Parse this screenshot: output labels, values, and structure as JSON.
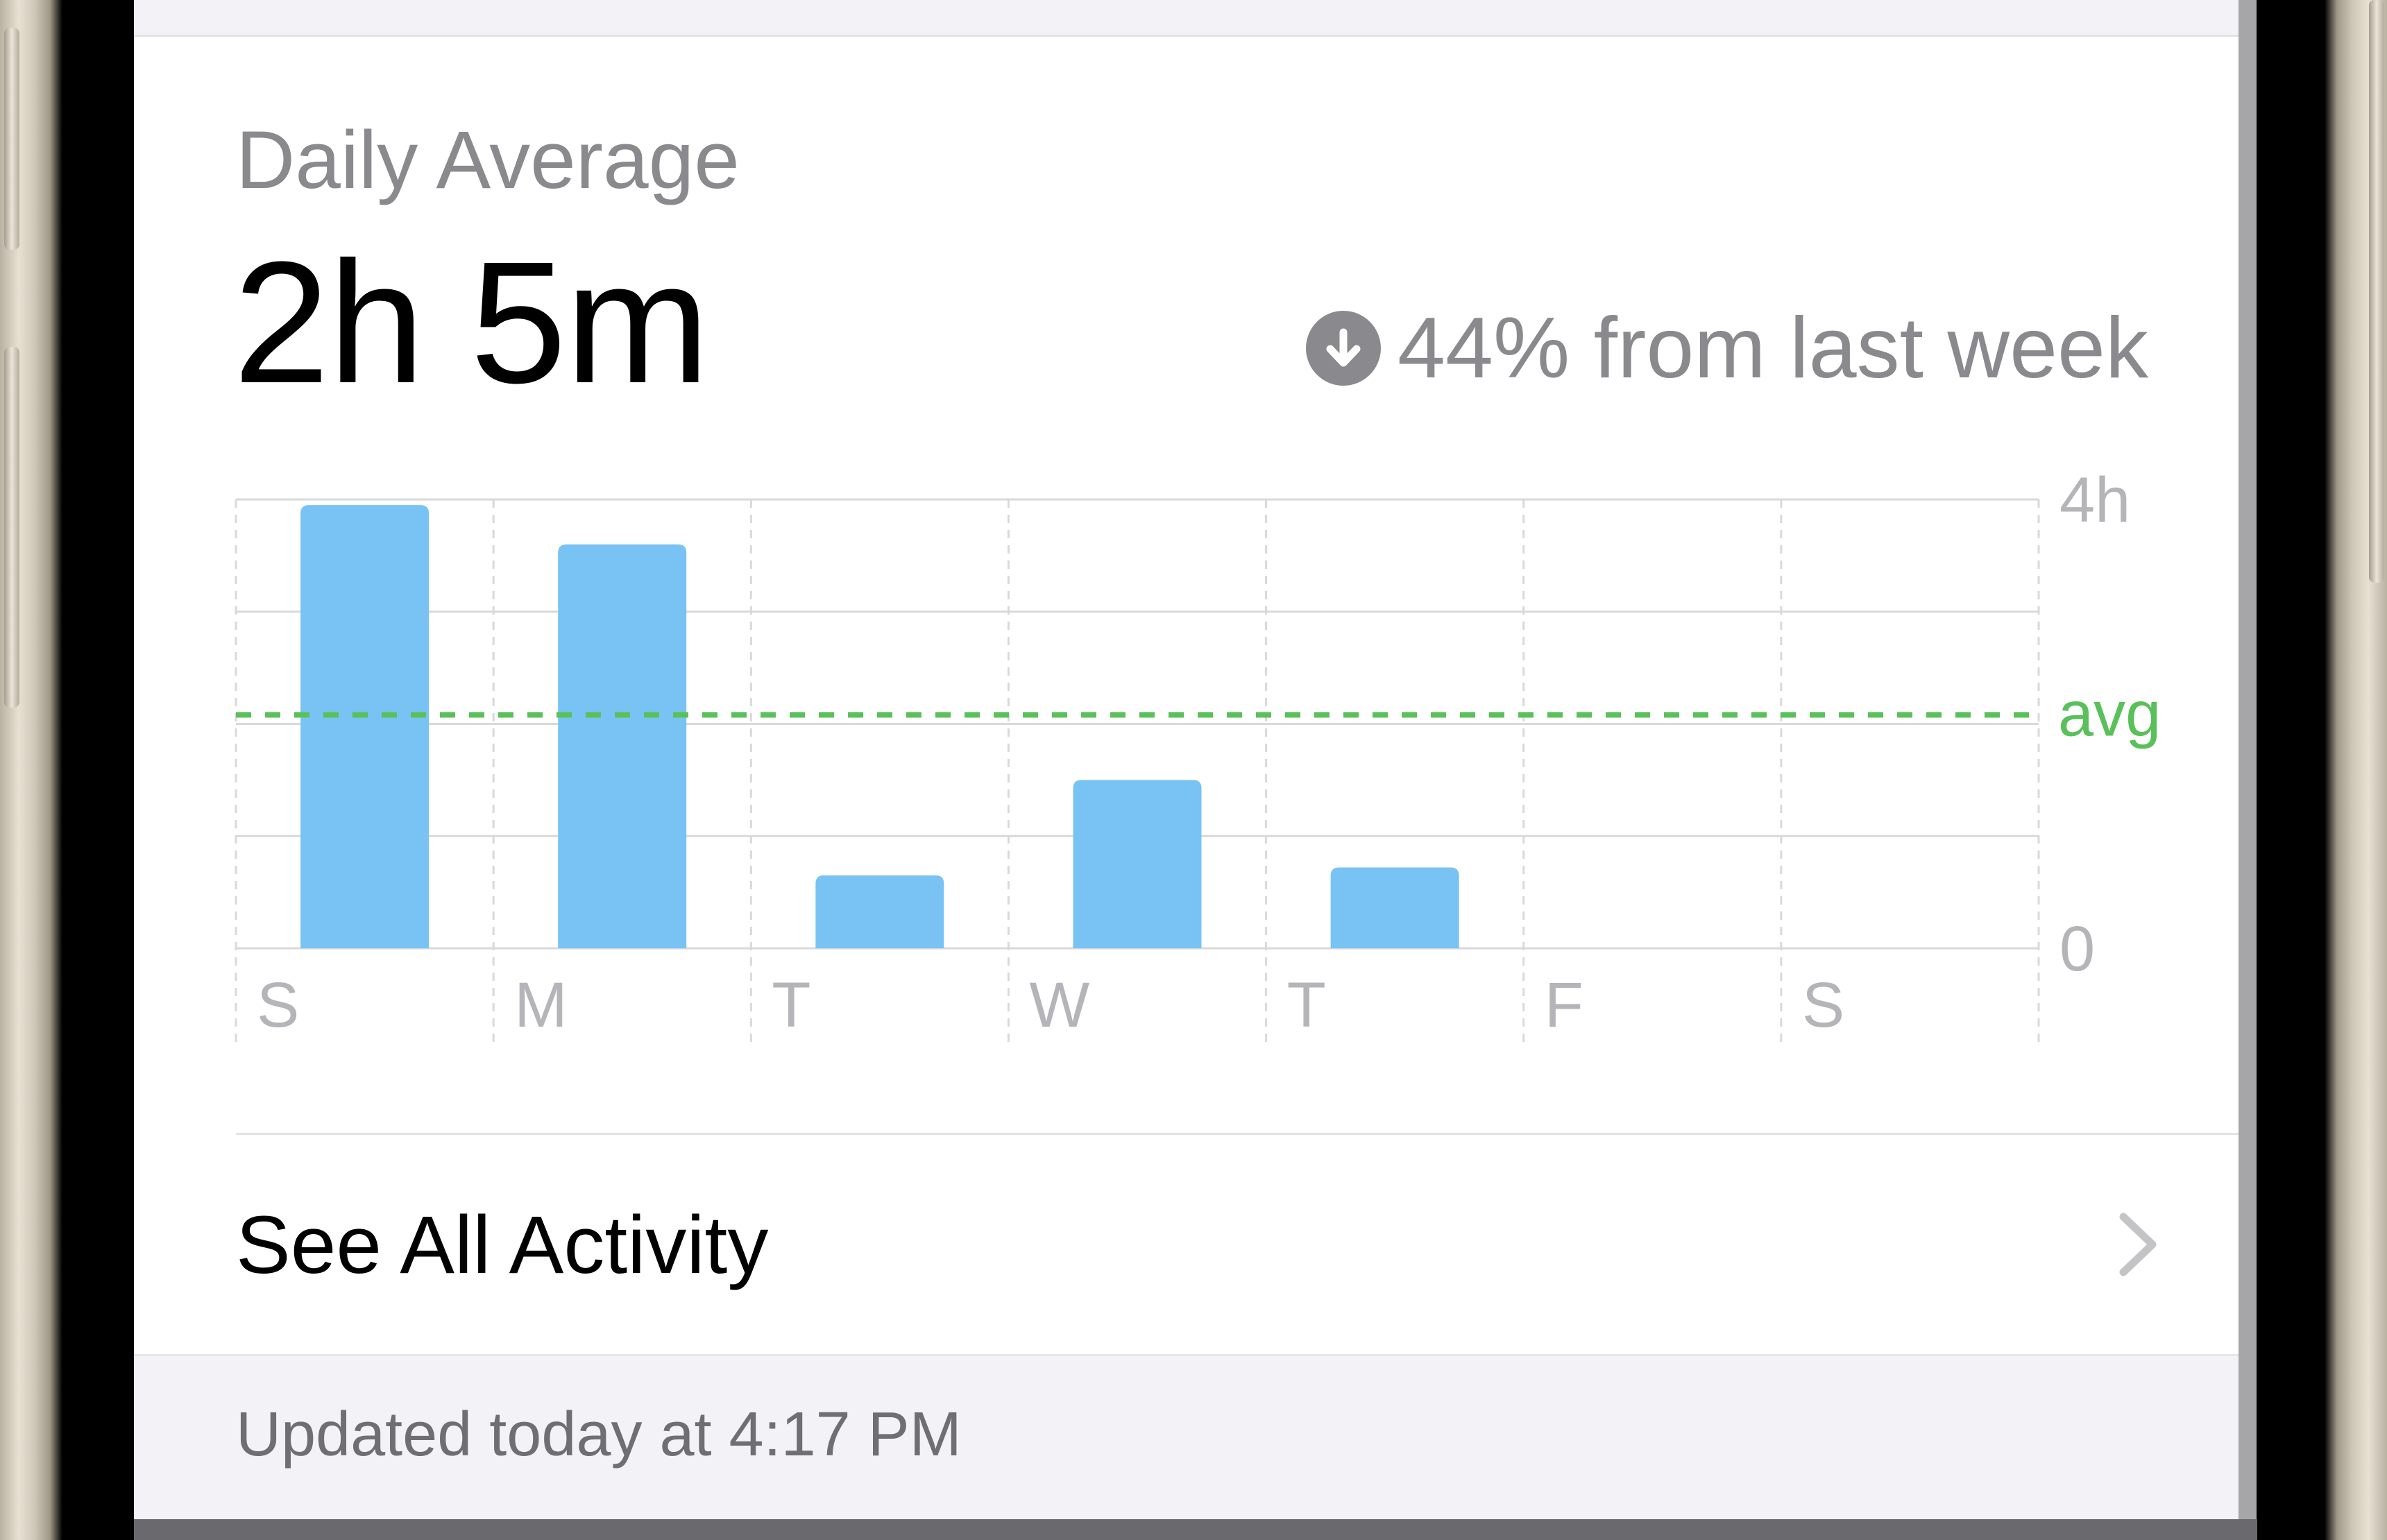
{
  "summary": {
    "title": "Daily Average",
    "value": "2h 5m",
    "change_text": "44% from last week",
    "change_icon": "arrow-down-circle-icon"
  },
  "chart_data": {
    "type": "bar",
    "categories": [
      "S",
      "M",
      "T",
      "W",
      "T",
      "F",
      "S"
    ],
    "values": [
      3.95,
      3.6,
      0.65,
      1.5,
      0.72,
      0,
      0
    ],
    "ylim": [
      0,
      4
    ],
    "y_tick_labels": [
      "4h",
      "0"
    ],
    "average": 2.08,
    "average_label": "avg",
    "grid": true,
    "colors": {
      "bar": "#78c3f3",
      "average": "#5ac05a",
      "grid": "#d9d9dc",
      "label": "#b5b5b9"
    }
  },
  "activity_link": {
    "label": "See All Activity",
    "icon": "chevron-right-icon"
  },
  "footer": {
    "updated_text": "Updated today at 4:17 PM"
  },
  "colors": {
    "accent_green": "#5ac05a",
    "secondary_text": "#8a8a8e",
    "background_grouped": "#f2f2f7"
  }
}
